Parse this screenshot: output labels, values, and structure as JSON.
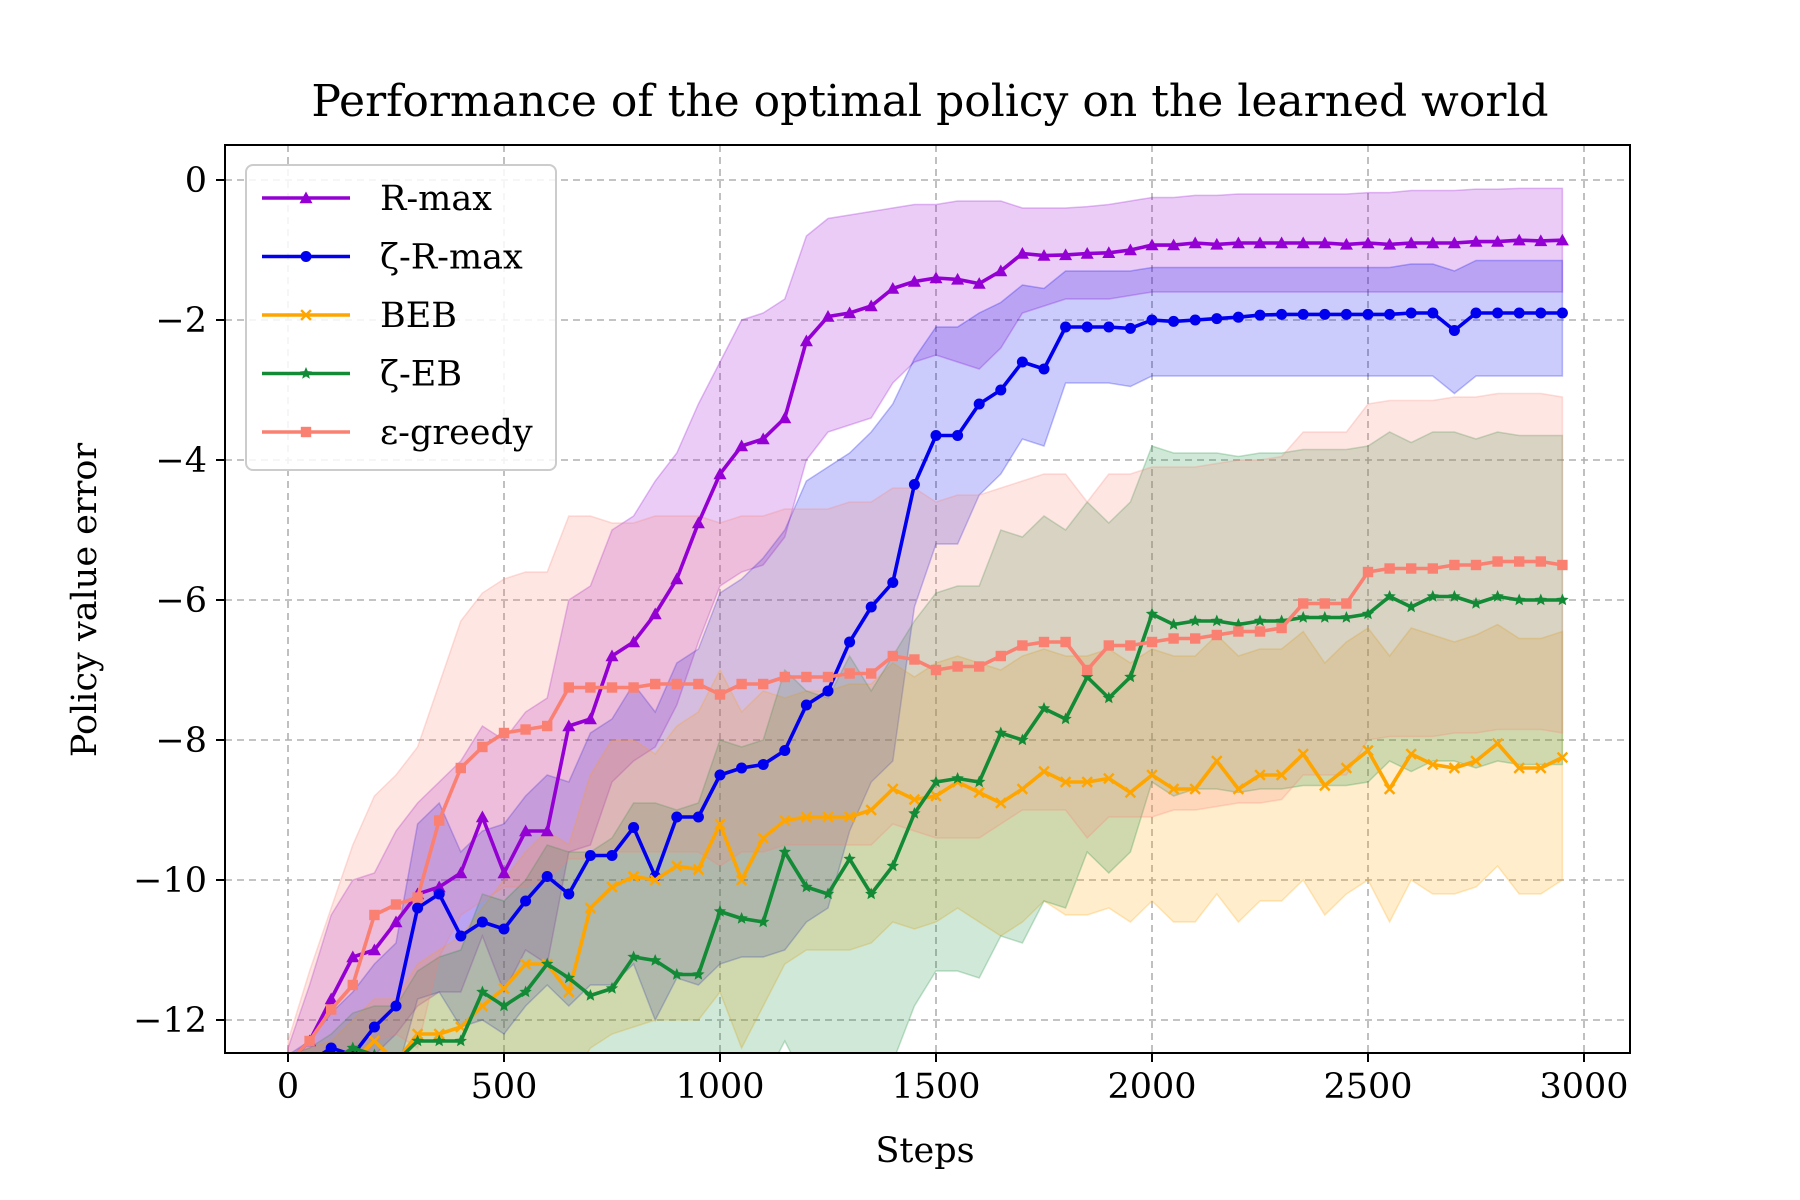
{
  "chart_data": {
    "type": "line",
    "title": "Performance of the optimal policy on the learned world",
    "xlabel": "Steps",
    "ylabel": "Policy value error",
    "xlim": [
      -150,
      3100
    ],
    "ylim": [
      -12.5,
      0.5
    ],
    "xticks": [
      0,
      500,
      1000,
      1500,
      2000,
      2500,
      3000
    ],
    "xtick_labels": [
      "0",
      "500",
      "1000",
      "1500",
      "2000",
      "2500",
      "3000"
    ],
    "yticks": [
      0,
      -2,
      -4,
      -6,
      -8,
      -10,
      -12
    ],
    "ytick_labels": [
      "0",
      "−2",
      "−4",
      "−6",
      "−8",
      "−10",
      "−12"
    ],
    "grid": true,
    "legend_position": "upper-left",
    "x": [
      0,
      50,
      100,
      150,
      200,
      250,
      300,
      350,
      400,
      450,
      500,
      550,
      600,
      650,
      700,
      750,
      800,
      850,
      900,
      950,
      1000,
      1050,
      1100,
      1150,
      1200,
      1250,
      1300,
      1350,
      1400,
      1450,
      1500,
      1550,
      1600,
      1650,
      1700,
      1750,
      1800,
      1850,
      1900,
      1950,
      2000,
      2050,
      2100,
      2150,
      2200,
      2250,
      2300,
      2350,
      2400,
      2450,
      2500,
      2550,
      2600,
      2650,
      2700,
      2750,
      2800,
      2850,
      2900,
      2950
    ],
    "series": [
      {
        "name": "R-max",
        "color": "#9400D3",
        "marker": "triangle",
        "values": [
          -12.6,
          -12.3,
          -11.7,
          -11.1,
          -11.0,
          -10.6,
          -10.2,
          -10.1,
          -9.9,
          -9.1,
          -9.9,
          -9.3,
          -9.3,
          -7.8,
          -7.7,
          -6.8,
          -6.6,
          -6.2,
          -5.7,
          -4.9,
          -4.2,
          -3.8,
          -3.7,
          -3.4,
          -2.3,
          -1.95,
          -1.9,
          -1.8,
          -1.55,
          -1.45,
          -1.4,
          -1.42,
          -1.48,
          -1.3,
          -1.05,
          -1.08,
          -1.07,
          -1.05,
          -1.04,
          -1.0,
          -0.93,
          -0.93,
          -0.9,
          -0.92,
          -0.9,
          -0.9,
          -0.9,
          -0.9,
          -0.9,
          -0.92,
          -0.9,
          -0.92,
          -0.9,
          -0.9,
          -0.9,
          -0.88,
          -0.88,
          -0.86,
          -0.87,
          -0.86
        ],
        "upper": [
          -12.4,
          -11.5,
          -10.5,
          -10.0,
          -9.9,
          -9.3,
          -8.9,
          -8.6,
          -8.3,
          -7.8,
          -8.0,
          -7.6,
          -7.4,
          -6.0,
          -5.8,
          -5.0,
          -4.8,
          -4.3,
          -3.9,
          -3.2,
          -2.6,
          -2.0,
          -1.9,
          -1.7,
          -0.8,
          -0.55,
          -0.5,
          -0.45,
          -0.4,
          -0.35,
          -0.35,
          -0.3,
          -0.3,
          -0.3,
          -0.4,
          -0.4,
          -0.4,
          -0.38,
          -0.35,
          -0.3,
          -0.25,
          -0.25,
          -0.22,
          -0.22,
          -0.2,
          -0.2,
          -0.2,
          -0.2,
          -0.2,
          -0.2,
          -0.18,
          -0.18,
          -0.15,
          -0.15,
          -0.15,
          -0.13,
          -0.13,
          -0.12,
          -0.12,
          -0.12
        ],
        "lower": [
          -12.8,
          -12.8,
          -12.8,
          -12.7,
          -12.5,
          -12.2,
          -11.8,
          -11.6,
          -11.6,
          -10.8,
          -11.6,
          -11.0,
          -11.2,
          -9.6,
          -9.5,
          -8.6,
          -8.3,
          -8.1,
          -7.5,
          -6.6,
          -5.8,
          -5.6,
          -5.5,
          -5.1,
          -4.0,
          -3.6,
          -3.5,
          -3.4,
          -2.9,
          -2.6,
          -2.5,
          -2.6,
          -2.7,
          -2.4,
          -1.9,
          -1.8,
          -1.7,
          -1.7,
          -1.7,
          -1.65,
          -1.6,
          -1.6,
          -1.6,
          -1.6,
          -1.6,
          -1.6,
          -1.6,
          -1.6,
          -1.6,
          -1.6,
          -1.6,
          -1.6,
          -1.6,
          -1.6,
          -1.6,
          -1.6,
          -1.6,
          -1.6,
          -1.6,
          -1.6
        ]
      },
      {
        "name": "ζ-R-max",
        "color": "#0000EE",
        "marker": "circle",
        "values": [
          -12.6,
          -12.6,
          -12.4,
          -12.5,
          -12.1,
          -11.8,
          -10.4,
          -10.2,
          -10.8,
          -10.6,
          -10.7,
          -10.3,
          -9.95,
          -10.2,
          -9.65,
          -9.65,
          -9.25,
          -9.95,
          -9.1,
          -9.1,
          -8.5,
          -8.4,
          -8.35,
          -8.15,
          -7.5,
          -7.3,
          -6.6,
          -6.1,
          -5.75,
          -4.35,
          -3.65,
          -3.65,
          -3.2,
          -3.0,
          -2.6,
          -2.7,
          -2.1,
          -2.1,
          -2.1,
          -2.12,
          -2.0,
          -2.02,
          -2.0,
          -1.98,
          -1.96,
          -1.93,
          -1.92,
          -1.92,
          -1.92,
          -1.92,
          -1.92,
          -1.92,
          -1.9,
          -1.9,
          -2.15,
          -1.9,
          -1.9,
          -1.9,
          -1.9,
          -1.9
        ],
        "upper": [
          -12.5,
          -12.3,
          -11.9,
          -11.6,
          -11.2,
          -10.9,
          -9.2,
          -8.9,
          -9.6,
          -9.3,
          -9.2,
          -8.8,
          -8.5,
          -8.6,
          -7.9,
          -7.7,
          -7.2,
          -7.6,
          -6.9,
          -6.7,
          -5.9,
          -5.7,
          -5.4,
          -5.0,
          -4.3,
          -4.1,
          -3.9,
          -3.6,
          -3.2,
          -2.55,
          -2.1,
          -2.1,
          -1.9,
          -1.75,
          -1.5,
          -1.55,
          -1.3,
          -1.3,
          -1.3,
          -1.3,
          -1.25,
          -1.25,
          -1.25,
          -1.25,
          -1.25,
          -1.25,
          -1.25,
          -1.25,
          -1.25,
          -1.25,
          -1.25,
          -1.25,
          -1.2,
          -1.2,
          -1.3,
          -1.15,
          -1.15,
          -1.15,
          -1.15,
          -1.15
        ],
        "lower": [
          -12.7,
          -12.8,
          -12.8,
          -12.8,
          -12.8,
          -12.8,
          -11.7,
          -11.6,
          -12.1,
          -12.0,
          -12.2,
          -11.8,
          -11.5,
          -11.8,
          -11.5,
          -11.5,
          -11.2,
          -12.0,
          -11.4,
          -11.5,
          -11.2,
          -11.1,
          -11.1,
          -11.0,
          -10.6,
          -10.4,
          -9.3,
          -8.6,
          -8.3,
          -6.1,
          -5.2,
          -5.2,
          -4.5,
          -4.2,
          -3.7,
          -3.8,
          -2.9,
          -2.9,
          -2.9,
          -2.95,
          -2.8,
          -2.8,
          -2.8,
          -2.8,
          -2.8,
          -2.8,
          -2.8,
          -2.8,
          -2.8,
          -2.8,
          -2.8,
          -2.8,
          -2.8,
          -2.8,
          -3.05,
          -2.8,
          -2.8,
          -2.8,
          -2.8,
          -2.8
        ]
      },
      {
        "name": "BEB",
        "color": "#FFA500",
        "marker": "x",
        "values": [
          -12.7,
          -12.7,
          -12.7,
          -12.6,
          -12.3,
          -12.6,
          -12.2,
          -12.2,
          -12.1,
          -11.8,
          -11.55,
          -11.2,
          -11.2,
          -11.6,
          -10.4,
          -10.1,
          -9.95,
          -10.0,
          -9.8,
          -9.85,
          -9.2,
          -10.0,
          -9.4,
          -9.15,
          -9.1,
          -9.1,
          -9.1,
          -9.0,
          -8.7,
          -8.85,
          -8.8,
          -8.6,
          -8.75,
          -8.9,
          -8.7,
          -8.45,
          -8.6,
          -8.6,
          -8.55,
          -8.75,
          -8.5,
          -8.7,
          -8.7,
          -8.3,
          -8.7,
          -8.5,
          -8.5,
          -8.2,
          -8.65,
          -8.4,
          -8.15,
          -8.7,
          -8.2,
          -8.35,
          -8.4,
          -8.3,
          -8.05,
          -8.4,
          -8.4,
          -8.25
        ],
        "upper": [
          -12.5,
          -12.4,
          -12.3,
          -12.0,
          -11.7,
          -11.7,
          -11.2,
          -11.0,
          -10.8,
          -10.4,
          -10.0,
          -9.6,
          -9.3,
          -9.5,
          -8.5,
          -8.0,
          -8.0,
          -8.2,
          -7.8,
          -7.6,
          -7.0,
          -7.6,
          -7.3,
          -7.4,
          -7.3,
          -7.3,
          -7.2,
          -7.2,
          -6.9,
          -7.1,
          -6.9,
          -6.8,
          -6.9,
          -7.0,
          -6.8,
          -6.7,
          -6.8,
          -6.8,
          -6.7,
          -6.9,
          -6.7,
          -6.8,
          -6.8,
          -6.5,
          -6.8,
          -6.7,
          -6.7,
          -6.45,
          -6.9,
          -6.6,
          -6.4,
          -6.8,
          -6.4,
          -6.5,
          -6.6,
          -6.5,
          -6.35,
          -6.55,
          -6.55,
          -6.45
        ],
        "lower": [
          -12.9,
          -12.9,
          -12.9,
          -12.9,
          -12.9,
          -12.9,
          -12.9,
          -12.9,
          -12.9,
          -12.9,
          -12.9,
          -12.9,
          -12.9,
          -12.9,
          -12.4,
          -12.2,
          -12.1,
          -12.0,
          -12.0,
          -12.0,
          -11.6,
          -12.4,
          -11.8,
          -11.2,
          -11.0,
          -11.0,
          -11.0,
          -10.9,
          -10.6,
          -10.7,
          -10.6,
          -10.4,
          -10.6,
          -10.8,
          -10.6,
          -10.3,
          -10.5,
          -10.5,
          -10.4,
          -10.6,
          -10.3,
          -10.6,
          -10.6,
          -10.2,
          -10.6,
          -10.3,
          -10.3,
          -10.0,
          -10.5,
          -10.2,
          -10.0,
          -10.6,
          -10.0,
          -10.2,
          -10.2,
          -10.1,
          -9.8,
          -10.2,
          -10.2,
          -10.0
        ]
      },
      {
        "name": "ζ-EB",
        "color": "#138A36",
        "marker": "star",
        "values": [
          -12.7,
          -12.7,
          -12.6,
          -12.4,
          -12.5,
          -12.6,
          -12.3,
          -12.3,
          -12.3,
          -11.6,
          -11.8,
          -11.6,
          -11.2,
          -11.4,
          -11.65,
          -11.55,
          -11.1,
          -11.15,
          -11.35,
          -11.35,
          -10.45,
          -10.55,
          -10.6,
          -9.6,
          -10.1,
          -10.2,
          -9.7,
          -10.2,
          -9.8,
          -9.05,
          -8.6,
          -8.55,
          -8.6,
          -7.9,
          -8.0,
          -7.55,
          -7.7,
          -7.1,
          -7.4,
          -7.1,
          -6.2,
          -6.35,
          -6.3,
          -6.3,
          -6.35,
          -6.3,
          -6.3,
          -6.25,
          -6.25,
          -6.25,
          -6.2,
          -5.95,
          -6.1,
          -5.95,
          -5.95,
          -6.05,
          -5.95,
          -6.0,
          -6.0,
          -6.0
        ],
        "upper": [
          -12.5,
          -12.4,
          -12.2,
          -11.9,
          -11.8,
          -11.8,
          -11.3,
          -11.1,
          -11.0,
          -10.2,
          -10.3,
          -10.0,
          -9.5,
          -9.6,
          -9.6,
          -9.4,
          -8.9,
          -8.9,
          -9.0,
          -8.9,
          -8.0,
          -8.1,
          -8.0,
          -7.0,
          -7.3,
          -7.4,
          -6.8,
          -7.3,
          -6.8,
          -6.3,
          -5.9,
          -5.8,
          -5.8,
          -5.0,
          -5.1,
          -4.8,
          -5.0,
          -4.6,
          -4.9,
          -4.6,
          -3.8,
          -3.9,
          -3.9,
          -3.9,
          -3.95,
          -3.9,
          -3.9,
          -3.85,
          -3.85,
          -3.85,
          -3.8,
          -3.6,
          -3.75,
          -3.6,
          -3.6,
          -3.7,
          -3.6,
          -3.65,
          -3.65,
          -3.65
        ],
        "lower": [
          -12.9,
          -12.9,
          -12.9,
          -12.9,
          -12.9,
          -12.9,
          -12.9,
          -12.9,
          -12.9,
          -12.9,
          -12.9,
          -12.9,
          -12.9,
          -12.9,
          -12.9,
          -12.9,
          -12.9,
          -12.9,
          -12.9,
          -12.9,
          -12.9,
          -12.9,
          -12.9,
          -12.3,
          -12.9,
          -12.9,
          -12.6,
          -12.9,
          -12.6,
          -11.8,
          -11.3,
          -11.3,
          -11.4,
          -10.8,
          -10.9,
          -10.3,
          -10.4,
          -9.6,
          -9.9,
          -9.6,
          -8.6,
          -8.8,
          -8.7,
          -8.7,
          -8.75,
          -8.7,
          -8.7,
          -8.65,
          -8.65,
          -8.65,
          -8.6,
          -8.3,
          -8.45,
          -8.3,
          -8.3,
          -8.4,
          -8.3,
          -8.35,
          -8.35,
          -8.35
        ]
      },
      {
        "name": "ε-greedy",
        "color": "#FA8072",
        "marker": "square",
        "values": [
          -12.6,
          -12.3,
          -11.85,
          -11.5,
          -10.5,
          -10.35,
          -10.25,
          -9.15,
          -8.4,
          -8.1,
          -7.9,
          -7.85,
          -7.8,
          -7.25,
          -7.25,
          -7.25,
          -7.25,
          -7.2,
          -7.2,
          -7.2,
          -7.35,
          -7.2,
          -7.2,
          -7.1,
          -7.1,
          -7.1,
          -7.05,
          -7.05,
          -6.8,
          -6.85,
          -7.0,
          -6.95,
          -6.95,
          -6.8,
          -6.65,
          -6.6,
          -6.6,
          -7.0,
          -6.65,
          -6.65,
          -6.6,
          -6.55,
          -6.55,
          -6.5,
          -6.45,
          -6.45,
          -6.4,
          -6.05,
          -6.05,
          -6.05,
          -5.6,
          -5.55,
          -5.55,
          -5.55,
          -5.5,
          -5.5,
          -5.45,
          -5.45,
          -5.45,
          -5.5
        ],
        "upper": [
          -12.3,
          -11.3,
          -10.4,
          -9.5,
          -8.8,
          -8.5,
          -8.1,
          -7.2,
          -6.3,
          -5.9,
          -5.7,
          -5.6,
          -5.6,
          -4.8,
          -4.8,
          -4.9,
          -4.9,
          -4.8,
          -4.8,
          -4.8,
          -4.9,
          -4.8,
          -4.8,
          -4.7,
          -4.7,
          -4.7,
          -4.6,
          -4.6,
          -4.4,
          -4.4,
          -4.6,
          -4.5,
          -4.5,
          -4.4,
          -4.3,
          -4.2,
          -4.2,
          -4.6,
          -4.2,
          -4.2,
          -4.1,
          -4.1,
          -4.1,
          -4.05,
          -4.0,
          -4.0,
          -3.95,
          -3.6,
          -3.6,
          -3.6,
          -3.2,
          -3.15,
          -3.15,
          -3.15,
          -3.1,
          -3.1,
          -3.05,
          -3.05,
          -3.05,
          -3.1
        ],
        "lower": [
          -12.9,
          -12.9,
          -12.9,
          -12.9,
          -12.3,
          -12.2,
          -12.4,
          -11.1,
          -10.5,
          -10.3,
          -10.1,
          -10.1,
          -10.0,
          -9.7,
          -9.7,
          -9.6,
          -9.6,
          -9.6,
          -9.6,
          -9.6,
          -9.8,
          -9.6,
          -9.6,
          -9.5,
          -9.5,
          -9.5,
          -9.5,
          -9.5,
          -9.2,
          -9.3,
          -9.4,
          -9.4,
          -9.4,
          -9.2,
          -9.0,
          -9.0,
          -9.0,
          -9.4,
          -9.1,
          -9.1,
          -9.1,
          -9.0,
          -9.0,
          -8.95,
          -8.9,
          -8.9,
          -8.85,
          -8.5,
          -8.5,
          -8.5,
          -8.0,
          -7.95,
          -7.95,
          -7.95,
          -7.9,
          -7.9,
          -7.85,
          -7.85,
          -7.85,
          -7.9
        ]
      }
    ]
  }
}
